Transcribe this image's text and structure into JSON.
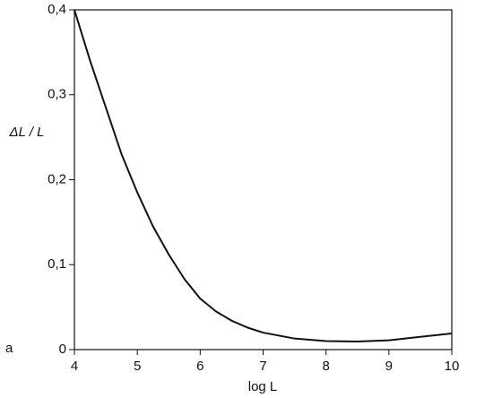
{
  "chart_data": {
    "type": "line",
    "panel_label": "a",
    "x_label": "log L",
    "y_label": "ΔL / L",
    "x": [
      4,
      4.25,
      4.5,
      4.75,
      5,
      5.25,
      5.5,
      5.75,
      6,
      6.25,
      6.5,
      6.75,
      7,
      7.5,
      8,
      8.5,
      9,
      9.5,
      10
    ],
    "series": [
      {
        "color": "#111111",
        "values": [
          0.4,
          0.34,
          0.285,
          0.23,
          0.185,
          0.145,
          0.112,
          0.083,
          0.06,
          0.045,
          0.034,
          0.026,
          0.02,
          0.013,
          0.01,
          0.0095,
          0.011,
          0.015,
          0.019
        ]
      }
    ],
    "xlim": [
      4,
      10
    ],
    "xticks": [
      4,
      5,
      6,
      7,
      8,
      9,
      10
    ],
    "ylim": [
      0,
      0.4
    ],
    "yticks": [
      0,
      {
        "value": 0.1,
        "label": "0,1"
      },
      {
        "value": 0.2,
        "label": "0,2"
      },
      {
        "value": 0.3,
        "label": "0,3"
      },
      {
        "value": 0.4,
        "label": "0,4"
      }
    ],
    "grid": false
  }
}
